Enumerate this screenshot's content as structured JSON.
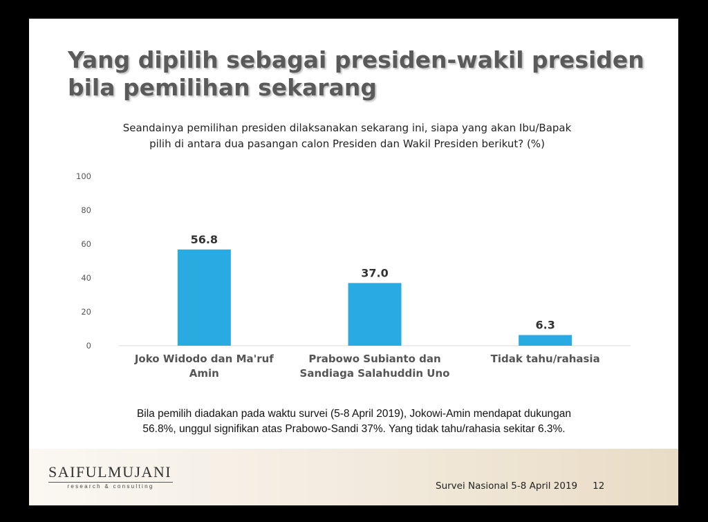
{
  "slide": {
    "title_line1": "Yang dipilih sebagai presiden-wakil presiden",
    "title_line2": "bila pemilihan sekarang",
    "summary_line1": "Bila pemilih diadakan pada waktu survei (5-8 April 2019), Jokowi-Amin mendapat dukungan",
    "summary_line2": "56.8%, unggul signifikan atas Prabowo-Sandi 37%. Yang tidak tahu/rahasia sekitar 6.3%.",
    "logo_name": "SAIFULMUJANI",
    "logo_tagline": "research & consulting",
    "footer_survey": "Survei Nasional 5-8 April 2019",
    "footer_page": "12"
  },
  "chart_data": {
    "type": "bar",
    "title_line1": "Seandainya pemilihan presiden dilaksanakan sekarang ini, siapa yang akan Ibu/Bapak",
    "title_line2": "pilih di antara dua pasangan calon Presiden dan Wakil Presiden berikut? (%)",
    "categories": [
      [
        "Joko Widodo dan Ma'ruf",
        "Amin"
      ],
      [
        "Prabowo Subianto dan",
        "Sandiaga Salahuddin Uno"
      ],
      [
        "Tidak tahu/rahasia"
      ]
    ],
    "values": [
      56.8,
      37.0,
      6.3
    ],
    "value_labels": [
      "56.8",
      "37.0",
      "6.3"
    ],
    "ylim": [
      0,
      100
    ],
    "yticks": [
      "0",
      "20",
      "40",
      "60",
      "80",
      "100"
    ],
    "grid": false,
    "bar_color": "#29abe2"
  }
}
